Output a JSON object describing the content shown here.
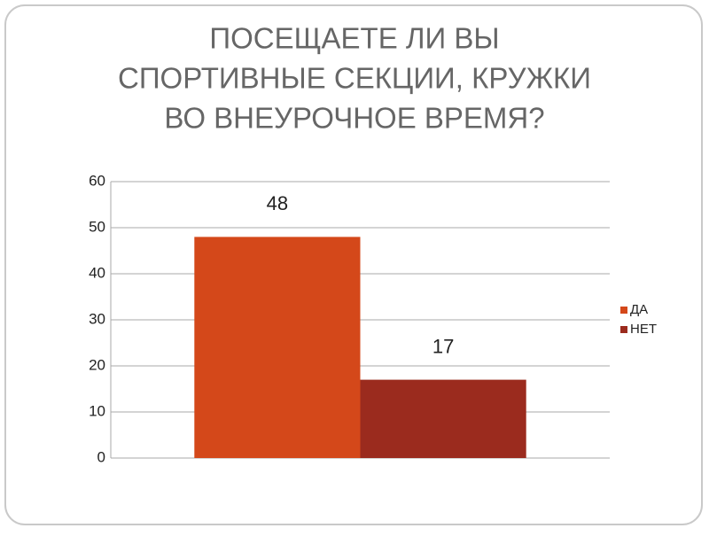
{
  "chart_data": {
    "type": "bar",
    "title": [
      "ПОСЕЩАЕТЕ ЛИ ВЫ",
      "СПОРТИВНЫЕ СЕКЦИИ, КРУЖКИ",
      "ВО ВНЕУРОЧНОЕ ВРЕМЯ?"
    ],
    "categories": [
      null
    ],
    "series": [
      {
        "name": "ДА",
        "color": "#d4481a",
        "values": [
          48
        ]
      },
      {
        "name": "НЕТ",
        "color": "#9b2b1e",
        "values": [
          17
        ]
      }
    ],
    "ylim": [
      0,
      60
    ],
    "yticks": [
      0,
      10,
      20,
      30,
      40,
      50,
      60
    ],
    "grid": true,
    "legend": "right",
    "data_labels": true
  }
}
